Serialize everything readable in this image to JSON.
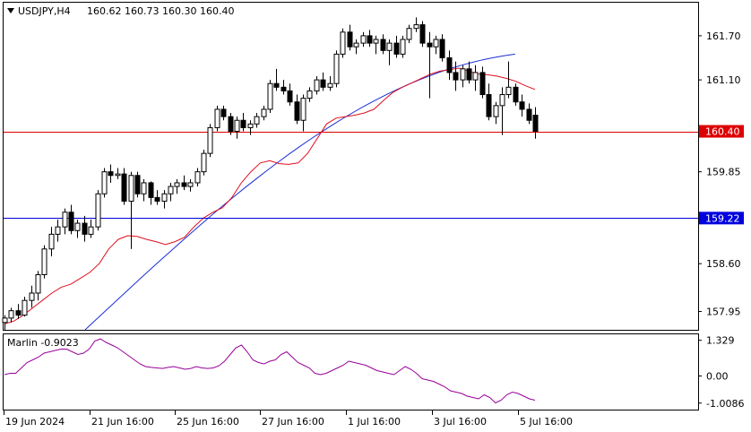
{
  "chart_data": [
    {
      "type": "candlestick",
      "symbol": "USDJPY,H4",
      "ohlc_header": "160.62 160.73 160.30 160.40",
      "ylim": [
        157.7,
        162.15
      ],
      "y_ticks": [
        "161.70",
        "161.10",
        "160.40",
        "159.85",
        "159.22",
        "158.60",
        "157.95"
      ],
      "x_ticks": [
        "19 Jun 2024",
        "21 Jun 16:00",
        "25 Jun 16:00",
        "27 Jun 16:00",
        "1 Jul 16:00",
        "3 Jul 16:00",
        "5 Jul 16:00"
      ],
      "candles": [
        [
          157.8,
          157.9,
          157.7,
          157.86
        ],
        [
          157.86,
          158.0,
          157.8,
          157.96
        ],
        [
          157.96,
          158.05,
          157.85,
          157.9
        ],
        [
          157.9,
          158.15,
          157.88,
          158.1
        ],
        [
          158.1,
          158.3,
          158.0,
          158.2
        ],
        [
          158.2,
          158.5,
          158.1,
          158.45
        ],
        [
          158.45,
          158.85,
          158.4,
          158.8
        ],
        [
          158.8,
          159.1,
          158.7,
          159.0
        ],
        [
          159.0,
          159.2,
          158.9,
          159.1
        ],
        [
          159.1,
          159.35,
          159.0,
          159.3
        ],
        [
          159.3,
          159.4,
          159.0,
          159.05
        ],
        [
          159.05,
          159.2,
          158.95,
          159.15
        ],
        [
          159.15,
          159.25,
          158.9,
          159.0
        ],
        [
          159.0,
          159.2,
          158.95,
          159.1
        ],
        [
          159.1,
          159.6,
          159.05,
          159.55
        ],
        [
          159.55,
          159.9,
          159.5,
          159.85
        ],
        [
          159.85,
          159.95,
          159.7,
          159.8
        ],
        [
          159.8,
          159.9,
          159.75,
          159.82
        ],
        [
          159.82,
          159.9,
          159.4,
          159.45
        ],
        [
          159.45,
          159.85,
          158.8,
          159.8
        ],
        [
          159.8,
          159.85,
          159.5,
          159.55
        ],
        [
          159.55,
          159.75,
          159.45,
          159.7
        ],
        [
          159.7,
          159.72,
          159.4,
          159.5
        ],
        [
          159.5,
          159.6,
          159.4,
          159.45
        ],
        [
          159.45,
          159.6,
          159.35,
          159.55
        ],
        [
          159.55,
          159.7,
          159.45,
          159.65
        ],
        [
          159.65,
          159.75,
          159.55,
          159.7
        ],
        [
          159.7,
          159.8,
          159.6,
          159.65
        ],
        [
          159.65,
          159.75,
          159.58,
          159.7
        ],
        [
          159.7,
          159.9,
          159.65,
          159.85
        ],
        [
          159.85,
          160.15,
          159.8,
          160.1
        ],
        [
          160.1,
          160.5,
          160.05,
          160.45
        ],
        [
          160.45,
          160.75,
          160.4,
          160.7
        ],
        [
          160.7,
          160.75,
          160.55,
          160.6
        ],
        [
          160.6,
          160.65,
          160.35,
          160.4
        ],
        [
          160.4,
          160.6,
          160.3,
          160.55
        ],
        [
          160.55,
          160.65,
          160.4,
          160.45
        ],
        [
          160.45,
          160.55,
          160.35,
          160.5
        ],
        [
          160.5,
          160.65,
          160.45,
          160.6
        ],
        [
          160.6,
          160.75,
          160.55,
          160.7
        ],
        [
          160.7,
          161.1,
          160.65,
          161.05
        ],
        [
          161.05,
          161.25,
          160.95,
          161.0
        ],
        [
          161.0,
          161.1,
          160.9,
          160.95
        ],
        [
          160.95,
          161.05,
          160.75,
          160.8
        ],
        [
          160.8,
          160.9,
          160.5,
          160.55
        ],
        [
          160.55,
          160.9,
          160.4,
          160.85
        ],
        [
          160.85,
          161.0,
          160.8,
          160.95
        ],
        [
          160.95,
          161.15,
          160.9,
          161.1
        ],
        [
          161.1,
          161.2,
          160.95,
          161.0
        ],
        [
          161.0,
          161.15,
          160.95,
          161.05
        ],
        [
          161.05,
          161.5,
          161.0,
          161.45
        ],
        [
          161.45,
          161.8,
          161.4,
          161.75
        ],
        [
          161.75,
          161.85,
          161.5,
          161.55
        ],
        [
          161.55,
          161.65,
          161.45,
          161.6
        ],
        [
          161.6,
          161.75,
          161.55,
          161.7
        ],
        [
          161.7,
          161.78,
          161.55,
          161.6
        ],
        [
          161.6,
          161.7,
          161.45,
          161.65
        ],
        [
          161.65,
          161.72,
          161.45,
          161.5
        ],
        [
          161.5,
          161.65,
          161.3,
          161.6
        ],
        [
          161.6,
          161.7,
          161.4,
          161.45
        ],
        [
          161.45,
          161.7,
          161.4,
          161.65
        ],
        [
          161.65,
          161.85,
          161.6,
          161.8
        ],
        [
          161.8,
          161.95,
          161.75,
          161.85
        ],
        [
          161.85,
          161.9,
          161.55,
          161.6
        ],
        [
          161.6,
          161.75,
          160.85,
          161.55
        ],
        [
          161.55,
          161.7,
          161.45,
          161.65
        ],
        [
          161.65,
          161.72,
          161.35,
          161.4
        ],
        [
          161.4,
          161.5,
          161.1,
          161.2
        ],
        [
          161.2,
          161.35,
          160.95,
          161.1
        ],
        [
          161.1,
          161.3,
          161.0,
          161.25
        ],
        [
          161.25,
          161.35,
          161.05,
          161.1
        ],
        [
          161.1,
          161.3,
          160.95,
          161.2
        ],
        [
          161.2,
          161.28,
          160.85,
          160.9
        ],
        [
          160.9,
          161.05,
          160.55,
          160.6
        ],
        [
          160.6,
          160.8,
          160.5,
          160.75
        ],
        [
          160.75,
          161.0,
          160.35,
          160.9
        ],
        [
          160.9,
          161.35,
          160.85,
          161.0
        ],
        [
          161.0,
          161.05,
          160.75,
          160.8
        ],
        [
          160.8,
          160.9,
          160.6,
          160.7
        ],
        [
          160.7,
          160.78,
          160.5,
          160.55
        ],
        [
          160.62,
          160.73,
          160.3,
          160.4
        ]
      ],
      "bands_upper_red": [
        157.78,
        157.82,
        157.9,
        158.0,
        158.1,
        158.2,
        158.28,
        158.32,
        158.4,
        158.48,
        158.6,
        158.8,
        158.93,
        158.98,
        158.97,
        158.93,
        158.9,
        158.86,
        158.9,
        158.96,
        159.1,
        159.22,
        159.3,
        159.36,
        159.5,
        159.7,
        159.85,
        159.97,
        160.0,
        159.96,
        159.95,
        159.97,
        160.1,
        160.3,
        160.5,
        160.58,
        160.6,
        160.62,
        160.65,
        160.7,
        160.82,
        160.93,
        161.0,
        161.06,
        161.12,
        161.18,
        161.22,
        161.24,
        161.26,
        161.22,
        161.18,
        161.17,
        161.15,
        161.12,
        161.08,
        161.02,
        160.97
      ],
      "ma_blue_end": 161.45,
      "hlines": [
        {
          "value": 160.4,
          "label": "160.40",
          "color": "#dd0000"
        },
        {
          "value": 159.22,
          "label": "159.22",
          "color": "#0000dd"
        }
      ]
    },
    {
      "type": "line",
      "name_label": "Marlin -0.9023",
      "ylim": [
        -1.25,
        1.55
      ],
      "y_ticks": [
        "1.329",
        "0.00",
        "-1.0086"
      ],
      "values": [
        0.05,
        0.1,
        0.1,
        0.3,
        0.5,
        0.6,
        0.7,
        0.85,
        0.9,
        0.95,
        1.0,
        1.0,
        0.9,
        0.8,
        0.85,
        1.0,
        1.3,
        1.38,
        1.25,
        1.15,
        1.05,
        0.9,
        0.75,
        0.6,
        0.45,
        0.35,
        0.32,
        0.3,
        0.28,
        0.32,
        0.35,
        0.3,
        0.25,
        0.28,
        0.35,
        0.3,
        0.28,
        0.3,
        0.38,
        0.55,
        0.8,
        1.05,
        1.15,
        0.9,
        0.6,
        0.5,
        0.45,
        0.55,
        0.6,
        0.8,
        0.9,
        0.7,
        0.5,
        0.4,
        0.3,
        0.1,
        0.05,
        0.1,
        0.2,
        0.3,
        0.4,
        0.55,
        0.5,
        0.45,
        0.4,
        0.3,
        0.2,
        0.15,
        0.1,
        0.05,
        0.2,
        0.35,
        0.25,
        0.1,
        -0.1,
        -0.15,
        -0.2,
        -0.3,
        -0.4,
        -0.55,
        -0.6,
        -0.65,
        -0.75,
        -0.8,
        -0.85,
        -0.7,
        -0.8,
        -1.0,
        -0.9,
        -0.7,
        -0.6,
        -0.65,
        -0.75,
        -0.85,
        -0.9
      ],
      "color": "#990099"
    }
  ]
}
